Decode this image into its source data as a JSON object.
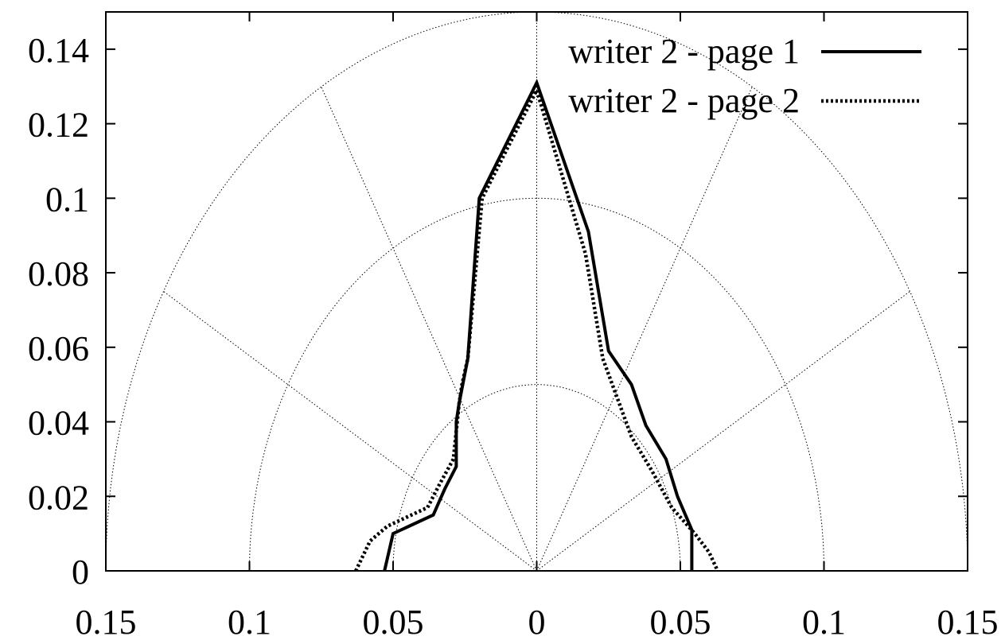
{
  "chart_data": {
    "type": "line",
    "subtype": "polar-half",
    "title": "",
    "xlabel": "",
    "ylabel": "",
    "xlim": [
      -0.15,
      0.15
    ],
    "ylim": [
      0,
      0.15
    ],
    "x_ticks": [
      -0.15,
      -0.1,
      -0.05,
      0,
      0.05,
      0.1,
      0.15
    ],
    "x_tick_labels": [
      "0.15",
      "0.1",
      "0.05",
      "0",
      "0.05",
      "0.1",
      "0.15"
    ],
    "y_ticks": [
      0,
      0.02,
      0.04,
      0.06,
      0.08,
      0.1,
      0.12,
      0.14
    ],
    "y_tick_labels": [
      "0",
      "0.02",
      "0.04",
      "0.06",
      "0.08",
      "0.1",
      "0.12",
      "0.14"
    ],
    "polar_grid": {
      "radii": [
        0.05,
        0.1,
        0.15
      ],
      "spokes_deg": [
        0,
        30,
        60,
        90,
        120,
        150,
        180
      ]
    },
    "legend_position": "top-right",
    "series": [
      {
        "name": "writer 2 - page 1",
        "style": "solid",
        "color": "#000000",
        "points": [
          [
            -0.053,
            0
          ],
          [
            -0.05,
            0.01
          ],
          [
            -0.036,
            0.015
          ],
          [
            -0.032,
            0.022
          ],
          [
            -0.028,
            0.028
          ],
          [
            -0.028,
            0.04
          ],
          [
            -0.027,
            0.045
          ],
          [
            -0.024,
            0.057
          ],
          [
            -0.02,
            0.1
          ],
          [
            0,
            0.131
          ],
          [
            0.018,
            0.091
          ],
          [
            0.025,
            0.059
          ],
          [
            0.033,
            0.05
          ],
          [
            0.038,
            0.039
          ],
          [
            0.045,
            0.03
          ],
          [
            0.049,
            0.02
          ],
          [
            0.054,
            0.011
          ],
          [
            0.054,
            0
          ]
        ]
      },
      {
        "name": "writer 2 - page 2",
        "style": "dotted",
        "color": "#000000",
        "points": [
          [
            -0.063,
            0
          ],
          [
            -0.058,
            0.008
          ],
          [
            -0.052,
            0.012
          ],
          [
            -0.038,
            0.017
          ],
          [
            -0.034,
            0.023
          ],
          [
            -0.029,
            0.03
          ],
          [
            -0.027,
            0.045
          ],
          [
            -0.026,
            0.05
          ],
          [
            -0.024,
            0.057
          ],
          [
            -0.019,
            0.1
          ],
          [
            0,
            0.129
          ],
          [
            0.017,
            0.085
          ],
          [
            0.023,
            0.057
          ],
          [
            0.033,
            0.036
          ],
          [
            0.04,
            0.027
          ],
          [
            0.047,
            0.017
          ],
          [
            0.055,
            0.01
          ],
          [
            0.06,
            0.005
          ],
          [
            0.063,
            0
          ]
        ]
      }
    ]
  }
}
